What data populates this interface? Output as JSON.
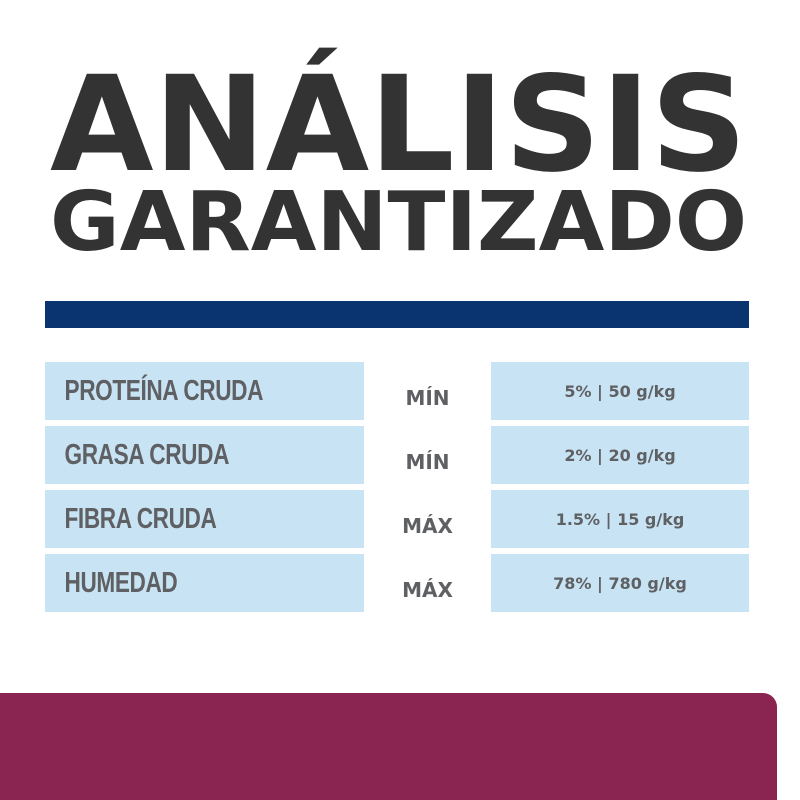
{
  "title": {
    "line1": "ANÁLISIS",
    "line2": "GARANTIZADO"
  },
  "colors": {
    "title": "#333333",
    "divider": "#0a3470",
    "cell": "#c8e4f4",
    "text": "#5f6063",
    "footer": "#8a2552"
  },
  "rows": [
    {
      "nutrient": "PROTEÍNA CRUDA",
      "qualifier": "MÍN",
      "value": "5% | 50 g/kg"
    },
    {
      "nutrient": "GRASA CRUDA",
      "qualifier": "MÍN",
      "value": "2% | 20 g/kg"
    },
    {
      "nutrient": "FIBRA CRUDA",
      "qualifier": "MÁX",
      "value": "1.5% | 15 g/kg"
    },
    {
      "nutrient": "HUMEDAD",
      "qualifier": "MÁX",
      "value": "78% | 780 g/kg"
    }
  ]
}
